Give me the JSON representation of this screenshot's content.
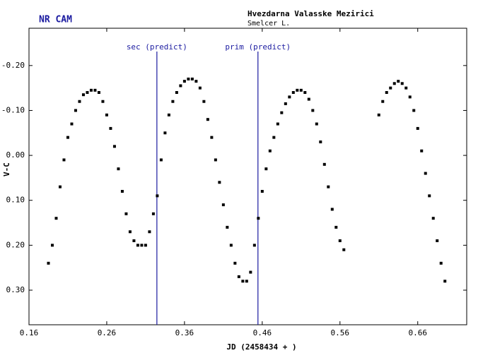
{
  "chart_data": {
    "type": "scatter",
    "title": "NR CAM",
    "observatory": "Hvezdarna Valasske Mezirici",
    "observer": "Smelcer L.",
    "xlabel": "JD (2458434 + )",
    "ylabel": "V-C",
    "xlim": [
      0.16,
      0.723
    ],
    "ylim": [
      0.377,
      -0.283
    ],
    "xticks": [
      0.16,
      0.26,
      0.36,
      0.46,
      0.56,
      0.66
    ],
    "yticks": [
      {
        "value": -0.2,
        "label": "-0.20"
      },
      {
        "value": -0.1,
        "label": "-0.10"
      },
      {
        "value": 0,
        "label": "0.00"
      },
      {
        "value": 0.1,
        "label": "0.10"
      },
      {
        "value": 0.2,
        "label": "0.20"
      },
      {
        "value": 0.3,
        "label": "0.30"
      }
    ],
    "color": "#000000",
    "annotation_color": "#1a1aa0",
    "annotations": [
      {
        "label": "sec (predict)",
        "x": 0.3245
      },
      {
        "label": "prim (predict)",
        "x": 0.4545
      }
    ],
    "x": [
      0.185,
      0.19,
      0.195,
      0.2,
      0.205,
      0.21,
      0.215,
      0.22,
      0.225,
      0.23,
      0.235,
      0.24,
      0.245,
      0.25,
      0.255,
      0.26,
      0.265,
      0.27,
      0.275,
      0.28,
      0.285,
      0.29,
      0.295,
      0.3,
      0.305,
      0.31,
      0.315,
      0.32,
      0.325,
      0.33,
      0.335,
      0.34,
      0.345,
      0.35,
      0.355,
      0.36,
      0.365,
      0.37,
      0.375,
      0.38,
      0.385,
      0.39,
      0.395,
      0.4,
      0.405,
      0.41,
      0.415,
      0.42,
      0.425,
      0.43,
      0.435,
      0.44,
      0.445,
      0.45,
      0.455,
      0.46,
      0.465,
      0.47,
      0.475,
      0.48,
      0.485,
      0.49,
      0.495,
      0.5,
      0.505,
      0.51,
      0.515,
      0.52,
      0.525,
      0.53,
      0.535,
      0.54,
      0.545,
      0.55,
      0.555,
      0.56,
      0.565,
      0.61,
      0.615,
      0.62,
      0.625,
      0.63,
      0.635,
      0.64,
      0.645,
      0.65,
      0.655,
      0.66,
      0.665,
      0.67,
      0.675,
      0.68,
      0.685,
      0.69,
      0.695
    ],
    "values": [
      0.24,
      0.2,
      0.14,
      0.07,
      0.01,
      -0.04,
      -0.07,
      -0.1,
      -0.12,
      -0.135,
      -0.14,
      -0.145,
      -0.145,
      -0.14,
      -0.12,
      -0.09,
      -0.06,
      -0.02,
      0.03,
      0.08,
      0.13,
      0.17,
      0.19,
      0.2,
      0.2,
      0.2,
      0.17,
      0.13,
      0.09,
      0.01,
      -0.05,
      -0.09,
      -0.12,
      -0.14,
      -0.155,
      -0.165,
      -0.17,
      -0.17,
      -0.165,
      -0.15,
      -0.12,
      -0.08,
      -0.04,
      0.01,
      0.06,
      0.11,
      0.16,
      0.2,
      0.24,
      0.27,
      0.28,
      0.28,
      0.26,
      0.2,
      0.14,
      0.08,
      0.03,
      -0.01,
      -0.04,
      -0.07,
      -0.095,
      -0.115,
      -0.13,
      -0.14,
      -0.145,
      -0.145,
      -0.14,
      -0.125,
      -0.1,
      -0.07,
      -0.03,
      0.02,
      0.07,
      0.12,
      0.16,
      0.19,
      0.21,
      -0.09,
      -0.12,
      -0.14,
      -0.15,
      -0.16,
      -0.165,
      -0.16,
      -0.15,
      -0.13,
      -0.1,
      -0.06,
      -0.01,
      0.04,
      0.09,
      0.14,
      0.19,
      0.24,
      0.28
    ]
  }
}
